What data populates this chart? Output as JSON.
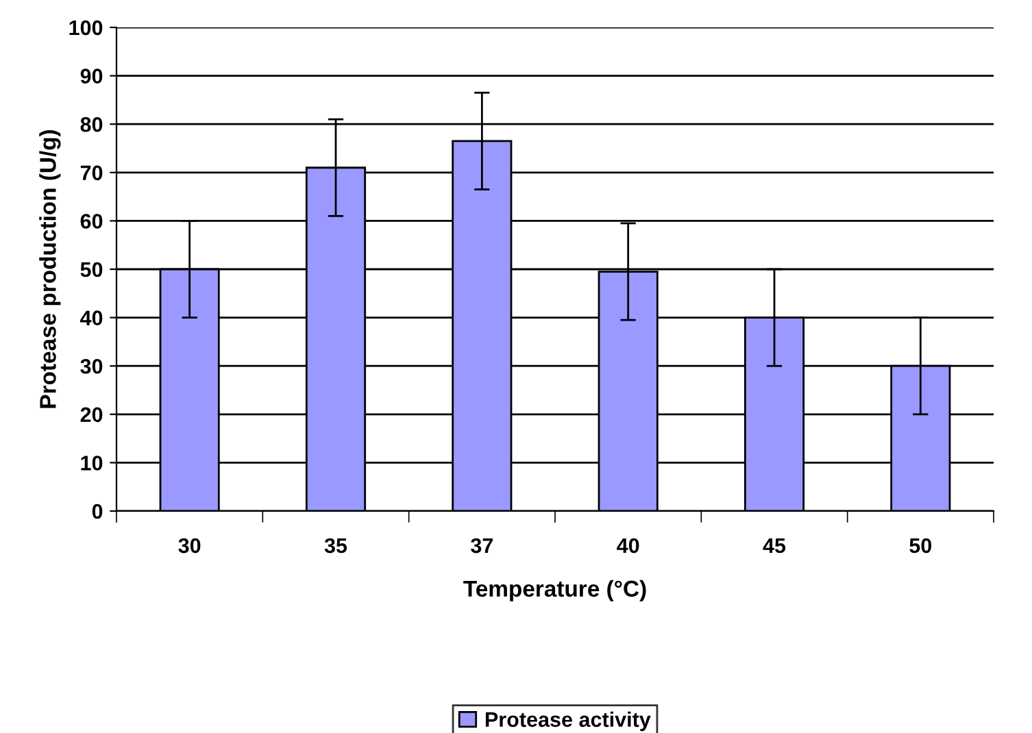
{
  "chart_data": {
    "type": "bar",
    "xlabel": "Temperature (°C)",
    "ylabel": "Protease production (U/g)",
    "categories": [
      "30",
      "35",
      "37",
      "40",
      "45",
      "50"
    ],
    "series": [
      {
        "name": "Protease activity",
        "color": "#9999ff",
        "values": [
          50,
          71,
          76.5,
          49.5,
          40,
          30
        ],
        "errors": [
          10,
          10,
          10,
          10,
          10,
          10
        ]
      }
    ],
    "ylim": [
      0,
      100
    ],
    "yticks": [
      0,
      10,
      20,
      30,
      40,
      50,
      60,
      70,
      80,
      90,
      100
    ],
    "grid": "y",
    "legend": "bottom"
  }
}
